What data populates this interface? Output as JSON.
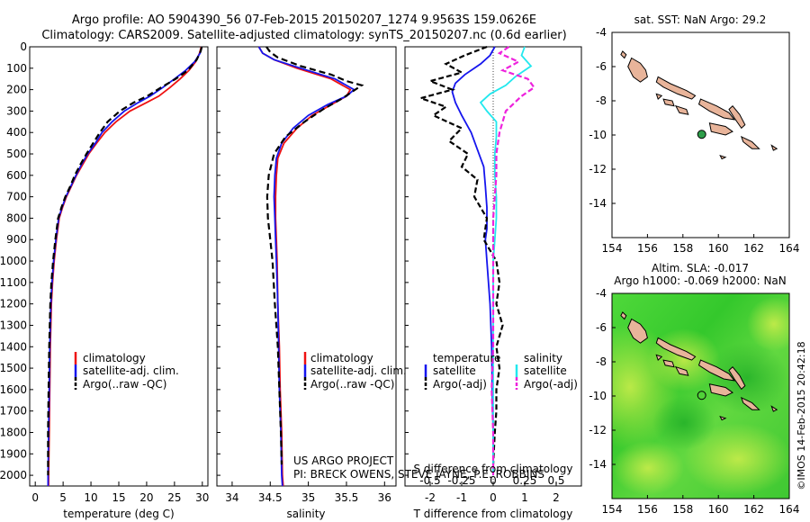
{
  "header": {
    "line1": "Argo profile: AO 5904390_56 07-Feb-2015 20150207_1274 9.9563S 159.0626E",
    "line2": "Climatology: CARS2009. Satellite-adjusted climatology: synTS_20150207.nc (0.6d earlier)"
  },
  "footer": {
    "project": "US ARGO PROJECT",
    "pi": "PI: BRECK OWENS, STEVE JAYNE, P.E. ROBBINS",
    "credit": "©IMOS 14-Feb-2015 20:42:18"
  },
  "colors": {
    "climatology": "#ee1111",
    "satellite": "#1515ee",
    "argo": "#000000",
    "sal_sat": "#22e8ee",
    "sal_argo": "#ee22dd",
    "land": "#e8b49a",
    "marker": "#2e9e4a"
  },
  "chart_data": [
    {
      "type": "line",
      "id": "temperature",
      "xlabel": "temperature (deg C)",
      "xlim": [
        -1,
        31
      ],
      "xticks": [
        0,
        5,
        10,
        15,
        20,
        25,
        30
      ],
      "ylim": [
        2050,
        0
      ],
      "yticks": [
        0,
        100,
        200,
        300,
        400,
        500,
        600,
        700,
        800,
        900,
        1000,
        1100,
        1200,
        1300,
        1400,
        1500,
        1600,
        1700,
        1800,
        1900,
        2000
      ],
      "legend": [
        "climatology",
        "satellite-adj. clim.",
        "Argo(..raw -QC)"
      ],
      "series": [
        {
          "name": "climatology",
          "color": "#ee1111",
          "dash": "",
          "x": [
            29.8,
            29.5,
            28.8,
            27.6,
            26.0,
            24.2,
            22.2,
            20.0,
            17.0,
            14.5,
            12.5,
            11.0,
            9.6,
            8.5,
            7.4,
            6.5,
            5.6,
            4.9,
            4.3,
            3.8,
            3.4,
            3.1,
            2.9,
            2.7,
            2.6,
            2.5,
            2.4,
            2.4
          ],
          "y": [
            0,
            30,
            70,
            110,
            150,
            190,
            230,
            260,
            300,
            350,
            400,
            450,
            500,
            550,
            600,
            650,
            700,
            750,
            800,
            900,
            1000,
            1100,
            1200,
            1400,
            1600,
            1800,
            2000,
            2050
          ]
        },
        {
          "name": "satellite-adj. clim.",
          "color": "#1515ee",
          "dash": "",
          "x": [
            29.9,
            29.6,
            28.6,
            27.0,
            25.0,
            22.9,
            20.6,
            18.5,
            16.0,
            13.8,
            12.0,
            10.8,
            9.4,
            8.3,
            7.3,
            6.4,
            5.5,
            4.8,
            4.2,
            3.7,
            3.3,
            3.0,
            2.8,
            2.6,
            2.5,
            2.4,
            2.3,
            2.3
          ],
          "y": [
            0,
            30,
            70,
            110,
            150,
            190,
            230,
            260,
            300,
            350,
            400,
            450,
            500,
            550,
            600,
            650,
            700,
            750,
            800,
            900,
            1000,
            1100,
            1200,
            1400,
            1600,
            1800,
            2000,
            2050
          ]
        },
        {
          "name": "Argo(..raw -QC)",
          "color": "#000000",
          "dash": "7 4",
          "x": [
            29.9,
            29.7,
            29.0,
            27.4,
            25.2,
            22.6,
            20.1,
            17.7,
            15.2,
            13.0,
            11.6,
            10.4,
            9.2,
            8.1,
            7.1,
            6.3,
            5.4,
            4.7,
            4.1,
            3.6,
            3.2,
            2.9,
            2.7,
            2.5,
            2.4,
            2.3,
            2.3
          ],
          "y": [
            0,
            20,
            60,
            110,
            150,
            190,
            230,
            260,
            300,
            350,
            400,
            450,
            500,
            550,
            600,
            650,
            700,
            750,
            800,
            900,
            1000,
            1100,
            1200,
            1400,
            1600,
            1800,
            2000
          ]
        }
      ]
    },
    {
      "type": "line",
      "id": "salinity",
      "xlabel": "salinity",
      "xlim": [
        33.8,
        36.15
      ],
      "xticks": [
        34,
        34.5,
        35,
        35.5,
        36
      ],
      "ylim": [
        2050,
        0
      ],
      "legend": [
        "climatology",
        "satellite-adj. clim.",
        "Argo(..raw -QC)"
      ],
      "series": [
        {
          "name": "climatology",
          "color": "#ee1111",
          "dash": "",
          "x": [
            34.35,
            34.4,
            34.55,
            34.85,
            35.3,
            35.55,
            35.5,
            35.3,
            35.05,
            34.85,
            34.68,
            34.6,
            34.58,
            34.57,
            34.57,
            34.58,
            34.59,
            34.6,
            34.62,
            34.63,
            34.65,
            34.66,
            34.67
          ],
          "y": [
            0,
            30,
            60,
            100,
            150,
            200,
            230,
            270,
            320,
            380,
            450,
            520,
            600,
            700,
            800,
            900,
            1000,
            1200,
            1400,
            1600,
            1800,
            2000,
            2050
          ]
        },
        {
          "name": "satellite-adj. clim.",
          "color": "#1515ee",
          "dash": "",
          "x": [
            34.35,
            34.4,
            34.55,
            34.9,
            35.35,
            35.6,
            35.5,
            35.25,
            35.0,
            34.8,
            34.65,
            34.58,
            34.56,
            34.55,
            34.56,
            34.57,
            34.58,
            34.6,
            34.61,
            34.62,
            34.64,
            34.65,
            34.66
          ],
          "y": [
            0,
            30,
            60,
            100,
            150,
            200,
            230,
            270,
            320,
            380,
            450,
            520,
            600,
            700,
            800,
            900,
            1000,
            1200,
            1400,
            1600,
            1800,
            2000,
            2050
          ]
        },
        {
          "name": "Argo(..raw -QC)",
          "color": "#000000",
          "dash": "7 4",
          "x": [
            34.45,
            34.5,
            34.6,
            34.9,
            35.3,
            35.5,
            35.7,
            35.45,
            35.2,
            34.95,
            34.7,
            34.55,
            34.48,
            34.46,
            34.47,
            34.5,
            34.53,
            34.56,
            34.6,
            34.62,
            34.64,
            34.65
          ],
          "y": [
            0,
            25,
            50,
            90,
            130,
            160,
            180,
            240,
            290,
            350,
            420,
            500,
            600,
            700,
            800,
            900,
            1000,
            1200,
            1400,
            1600,
            1800,
            1950
          ]
        }
      ]
    },
    {
      "type": "line",
      "id": "difference",
      "xlabel": "T difference from climatology",
      "xlabel_top": "S difference from climatology",
      "xlim": [
        -2.8,
        2.8
      ],
      "xticks_T": [
        -2,
        -1,
        0,
        1,
        2
      ],
      "xticks_S": [
        -0.5,
        -0.25,
        0,
        0.25,
        0.5
      ],
      "s_scale": 4,
      "ylim": [
        2050,
        0
      ],
      "legend": {
        "temperature": "temperature",
        "salinity": "salinity",
        "t_sat": "satellite",
        "t_argo": "Argo(-adj)",
        "s_sat": "satellite",
        "s_argo": "Argo(-adj)"
      },
      "series": [
        {
          "name": "T satellite",
          "color": "#1515ee",
          "dash": "",
          "x": [
            0.05,
            -0.1,
            -0.4,
            -0.9,
            -1.2,
            -1.3,
            -1.2,
            -1.0,
            -0.7,
            -0.5,
            -0.3,
            -0.25,
            -0.2,
            -0.2,
            -0.25,
            -0.2,
            -0.1,
            -0.05,
            -0.03,
            0,
            0
          ],
          "y": [
            0,
            40,
            80,
            130,
            170,
            210,
            260,
            320,
            400,
            480,
            560,
            650,
            750,
            850,
            900,
            1000,
            1200,
            1400,
            1600,
            1800,
            2000
          ]
        },
        {
          "name": "T Argo(-adj)",
          "color": "#000000",
          "dash": "6 3",
          "x": [
            -0.2,
            -0.9,
            -1.5,
            -1.0,
            -2.0,
            -1.3,
            -2.3,
            -1.5,
            -1.9,
            -1.0,
            -1.4,
            -0.8,
            -1.0,
            -0.5,
            -0.6,
            -0.2,
            -0.3,
            0.1,
            0.2,
            0.1,
            0.3,
            0.1,
            0.2,
            0.1,
            0.1,
            0.05,
            0.0
          ],
          "y": [
            0,
            40,
            80,
            120,
            160,
            200,
            240,
            280,
            320,
            380,
            440,
            500,
            560,
            620,
            700,
            800,
            900,
            1000,
            1100,
            1200,
            1300,
            1400,
            1500,
            1600,
            1700,
            1800,
            1950
          ]
        },
        {
          "name": "S satellite",
          "color": "#22e8ee",
          "dash": "",
          "x": [
            1.0,
            0.9,
            1.2,
            0.7,
            0.4,
            -0.1,
            -0.4,
            -0.2,
            0.1,
            0.1,
            0.05,
            0.05,
            0.1,
            0.1,
            0.05,
            0,
            0,
            0,
            0,
            0
          ],
          "y": [
            0,
            40,
            90,
            140,
            180,
            220,
            260,
            300,
            350,
            420,
            500,
            600,
            700,
            800,
            900,
            1000,
            1200,
            1400,
            1700,
            2000
          ]
        },
        {
          "name": "S Argo(-adj)",
          "color": "#ee22dd",
          "dash": "6 3",
          "x": [
            0.5,
            0.2,
            0.8,
            0.3,
            1.1,
            1.3,
            0.9,
            0.4,
            0.2,
            0.1,
            0.1,
            0,
            0,
            0,
            0,
            -0.05,
            0,
            0
          ],
          "y": [
            0,
            30,
            70,
            110,
            150,
            190,
            230,
            300,
            400,
            500,
            600,
            800,
            1000,
            1200,
            1400,
            1600,
            1800,
            2000
          ]
        }
      ]
    },
    {
      "type": "scatter",
      "id": "map_sst",
      "title": "sat. SST: NaN Argo: 29.2",
      "xlim": [
        154,
        164
      ],
      "ylim": [
        -16,
        -4
      ],
      "xticks": [
        154,
        156,
        158,
        160,
        162,
        164
      ],
      "yticks": [
        -4,
        -6,
        -8,
        -10,
        -12,
        -14
      ],
      "profile": {
        "lon": 159.06,
        "lat": -9.96
      }
    },
    {
      "type": "heatmap",
      "id": "map_sla",
      "title1": "Altim. SLA: -0.017",
      "title2": "Argo h1000: -0.069 h2000: NaN",
      "xlim": [
        154,
        164
      ],
      "ylim": [
        -16,
        -4
      ],
      "xticks": [
        154,
        156,
        158,
        160,
        162,
        164
      ],
      "yticks": [
        -4,
        -6,
        -8,
        -10,
        -12,
        -14
      ],
      "profile": {
        "lon": 159.06,
        "lat": -9.96
      }
    }
  ]
}
